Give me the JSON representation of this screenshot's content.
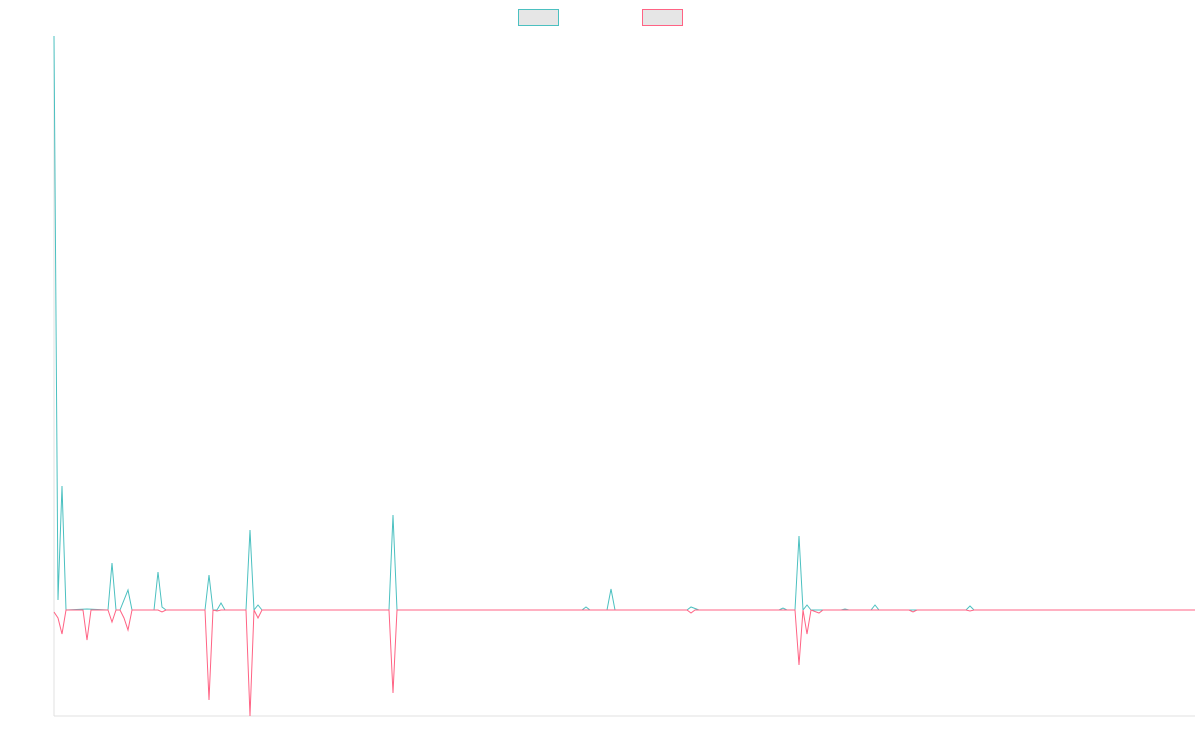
{
  "chart_data": {
    "type": "line",
    "xlim": [
      0,
      1141
    ],
    "ylim": [
      -106,
      574
    ],
    "legend": "top",
    "series": [
      {
        "color": "#4bc0c0",
        "x": [
          0,
          4,
          8,
          12,
          33,
          54,
          58,
          62,
          66,
          74,
          78,
          100,
          104,
          108,
          112,
          151,
          155,
          159,
          163,
          167,
          171,
          192,
          196,
          200,
          204,
          208,
          335,
          339,
          343,
          528,
          532,
          536,
          553,
          557,
          561,
          633,
          637,
          645,
          725,
          729,
          733,
          741,
          745,
          749,
          753,
          757,
          787,
          791,
          795,
          817,
          821,
          825,
          912,
          916,
          920,
          1141
        ],
        "values": [
          574,
          10,
          124,
          0,
          1,
          0,
          47,
          0,
          0,
          20,
          0,
          0,
          38,
          3,
          0,
          0,
          35,
          0,
          0,
          7,
          0,
          0,
          80,
          0,
          5,
          0,
          0,
          95,
          0,
          0,
          3,
          0,
          0,
          21,
          0,
          0,
          3,
          0,
          0,
          2,
          0,
          0,
          74,
          0,
          5,
          0,
          0,
          1,
          0,
          0,
          5,
          0,
          0,
          4,
          0,
          0
        ]
      },
      {
        "color": "#ff6384",
        "x": [
          0,
          4,
          8,
          12,
          29,
          33,
          37,
          54,
          58,
          62,
          66,
          70,
          74,
          78,
          104,
          108,
          112,
          151,
          155,
          159,
          163,
          167,
          192,
          196,
          200,
          204,
          208,
          335,
          339,
          343,
          633,
          637,
          641,
          741,
          745,
          749,
          753,
          757,
          765,
          769,
          855,
          859,
          863,
          912,
          916,
          920,
          1141
        ],
        "values": [
          -2,
          -8,
          -24,
          0,
          0,
          -30,
          0,
          0,
          -12,
          0,
          0,
          -8,
          -20,
          0,
          0,
          -2,
          0,
          0,
          -90,
          0,
          -1,
          0,
          0,
          -106,
          0,
          -8,
          0,
          0,
          -83,
          0,
          0,
          -3,
          0,
          0,
          -55,
          0,
          -24,
          0,
          -3,
          0,
          0,
          -2,
          0,
          0,
          -1,
          0,
          0
        ]
      }
    ]
  }
}
